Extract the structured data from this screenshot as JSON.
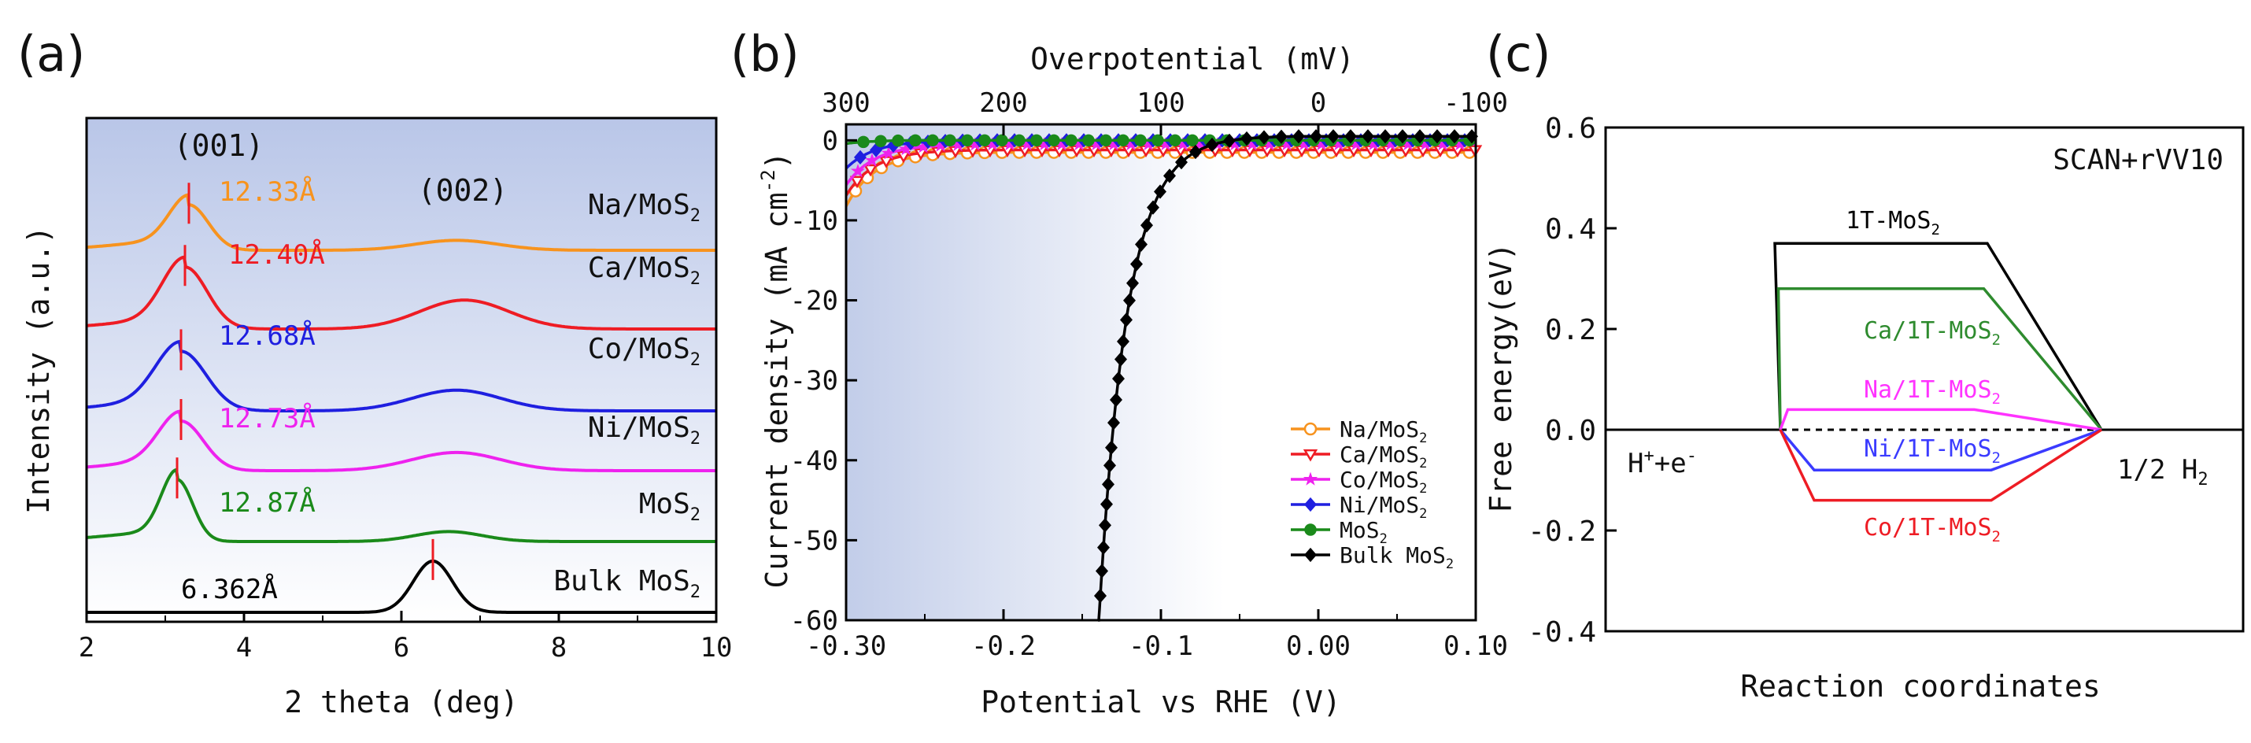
{
  "chart_data": [
    {
      "type": "line",
      "panel_label": "(a)",
      "xlabel": "2 theta (deg)",
      "ylabel": "Intensity (a.u.)",
      "xlim": [
        2,
        10
      ],
      "xticks": [
        "2",
        "4",
        "6",
        "8",
        "10"
      ],
      "peak_labels": [
        "(001)",
        "(002)"
      ],
      "series": [
        {
          "name": "Na/MoS",
          "sub": "2",
          "d_spacing": "12.33",
          "unit": "Å",
          "color": "#f7931e",
          "p1": 3.3,
          "p2": 6.7,
          "offset": 5,
          "h1": 0.55,
          "h2": 0.12,
          "w1": 0.35,
          "w2": 0.75,
          "width1": 0.8,
          "width2": 1.5
        },
        {
          "name": "Ca/MoS",
          "sub": "2",
          "d_spacing": "12.40",
          "unit": "Å",
          "color": "#ee1c24",
          "p1": 3.25,
          "p2": 6.8,
          "offset": 4,
          "h1": 0.75,
          "h2": 0.35,
          "w1": 0.4,
          "w2": 0.8,
          "width1": 0.8,
          "width2": 1.5
        },
        {
          "name": "Co/MoS",
          "sub": "2",
          "d_spacing": "12.68",
          "unit": "Å",
          "color": "#1f1fe0",
          "p1": 3.2,
          "p2": 6.7,
          "offset": 3,
          "h1": 0.72,
          "h2": 0.25,
          "w1": 0.45,
          "w2": 0.8,
          "width1": 0.8,
          "width2": 1.5
        },
        {
          "name": "Ni/MoS",
          "sub": "2",
          "d_spacing": "12.73",
          "unit": "Å",
          "color": "#ee22ee",
          "p1": 3.2,
          "p2": 6.7,
          "offset": 2,
          "h1": 0.6,
          "h2": 0.22,
          "w1": 0.4,
          "w2": 0.8,
          "width1": 0.8,
          "width2": 1.5
        },
        {
          "name": "MoS",
          "sub": "2",
          "d_spacing": "12.87",
          "unit": "Å",
          "color": "#1a8a1a",
          "p1": 3.15,
          "p2": 6.6,
          "offset": 1,
          "h1": 0.75,
          "h2": 0.12,
          "w1": 0.28,
          "w2": 0.6,
          "width1": 0.8,
          "width2": 1.5
        },
        {
          "name": "Bulk MoS",
          "sub": "2",
          "d_spacing": "6.362",
          "unit": "Å",
          "color": "#000000",
          "p1": 6.4,
          "p2": 6.4,
          "offset": 0,
          "h1": 0.62,
          "h2": 0,
          "w1": 0.35,
          "w2": 0.5,
          "width1": 0.8,
          "width2": 1.5
        }
      ]
    },
    {
      "type": "line",
      "panel_label": "(b)",
      "xlabel": "Potential vs RHE (V)",
      "ylabel": "Current density (mA cm",
      "ylabel_sup": "-2",
      "ylabel_close": ")",
      "top_xlabel": "Overpotential (mV)",
      "xlim": [
        -0.3,
        0.1
      ],
      "ylim": [
        -60,
        2
      ],
      "xticks": [
        "-0.30",
        "-0.2",
        "-0.1",
        "0.00",
        "0.10"
      ],
      "yticks": [
        "0",
        "-10",
        "-20",
        "-30",
        "-40",
        "-50",
        "-60"
      ],
      "top_xticks": [
        "300",
        "200",
        "100",
        "0",
        "-100"
      ],
      "series": [
        {
          "name": "Na/MoS",
          "sub": "2",
          "color": "#f7931e",
          "marker": "circle-open",
          "onset": -0.195,
          "slope": 0.00033,
          "plateau": -1.5
        },
        {
          "name": "Ca/MoS",
          "sub": "2",
          "color": "#ee1c24",
          "marker": "triangle-open",
          "onset": -0.198,
          "slope": 0.00033,
          "plateau": -1.2
        },
        {
          "name": "Co/MoS",
          "sub": "2",
          "color": "#ee22ee",
          "marker": "star",
          "onset": -0.2,
          "slope": 0.00033,
          "plateau": -0.5
        },
        {
          "name": "Ni/MoS",
          "sub": "2",
          "color": "#1f1fe0",
          "marker": "diamond",
          "onset": -0.205,
          "slope": 0.0003,
          "plateau": 0
        },
        {
          "name": "MoS",
          "sub": "2",
          "color": "#1a8a1a",
          "marker": "circle",
          "onset": -0.255,
          "slope": 0.0006,
          "plateau": 0
        },
        {
          "name": "Bulk MoS",
          "sub": "2",
          "color": "#000000",
          "marker": "diamond",
          "onset": -0.012,
          "slope": 0.00085,
          "plateau": 0.5
        }
      ]
    },
    {
      "type": "line",
      "panel_label": "(c)",
      "xlabel": "Reaction coordinates",
      "ylabel": "Free energy(eV)",
      "ylim": [
        -0.4,
        0.6
      ],
      "yticks": [
        "0.6",
        "0.4",
        "0.2",
        "0.0",
        "-0.2",
        "-0.4"
      ],
      "method": "SCAN+rVV10",
      "reactant": "H",
      "reactant_sup": "+",
      "reactant_tail": "+e",
      "reactant_sup2": "-",
      "product": "1/2 H",
      "product_sub": "2",
      "series": [
        {
          "name": "1T-MoS",
          "sub": "2",
          "color": "#000000",
          "value": 0.37
        },
        {
          "name": "Ca/1T-MoS",
          "sub": "2",
          "color": "#2e8b2e",
          "value": 0.28
        },
        {
          "name": "Na/1T-MoS",
          "sub": "2",
          "color": "#ff33ff",
          "value": 0.04
        },
        {
          "name": "Ni/1T-MoS",
          "sub": "2",
          "color": "#3b3bff",
          "value": -0.08
        },
        {
          "name": "Co/1T-MoS",
          "sub": "2",
          "color": "#ee1c24",
          "value": -0.14
        }
      ]
    }
  ]
}
